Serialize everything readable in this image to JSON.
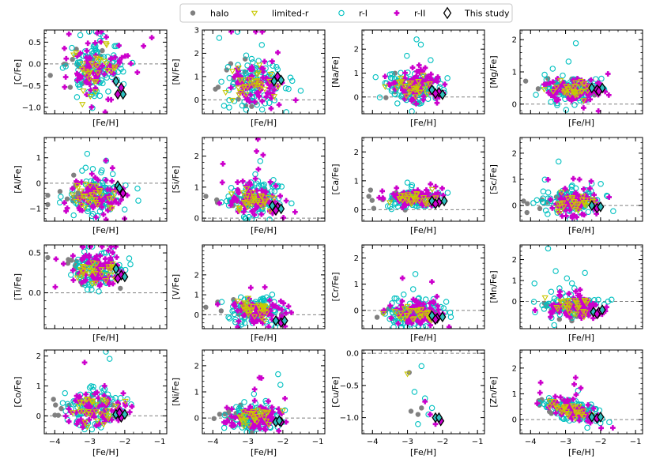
{
  "chart_data": {
    "type": "scatter",
    "title": "",
    "legend": {
      "placement": "top-center",
      "entries": [
        {
          "name": "halo",
          "marker": "circle-filled",
          "color": "#808080"
        },
        {
          "name": "limited-r",
          "marker": "triangle-down-open",
          "color": "#c8c800"
        },
        {
          "name": "r-I",
          "marker": "circle-open",
          "color": "#00c0c0"
        },
        {
          "name": "r-II",
          "marker": "plus-filled",
          "color": "#cc00cc"
        },
        {
          "name": "This study",
          "marker": "diamond-open",
          "color": "#000000"
        }
      ]
    },
    "shared_x": {
      "label": "[Fe/H]",
      "ticks": [
        "−4",
        "−3",
        "−2",
        "−1"
      ],
      "tick_values": [
        -4,
        -3,
        -2,
        -1
      ],
      "xlim": [
        -4.3,
        -0.8
      ]
    },
    "panels": [
      {
        "ylabel": "[C/Fe]",
        "ylim": [
          -1.15,
          0.78
        ],
        "yticks": [
          -1.0,
          -0.5,
          0.0,
          0.5
        ],
        "ytick_labels": [
          "−1.0",
          "−0.5",
          "0.0",
          "0.5"
        ],
        "ref": 0,
        "center": -0.1,
        "spread": 0.35,
        "this_study": [
          [
            -2.25,
            -0.4
          ],
          [
            -2.1,
            -0.55
          ],
          [
            -2.05,
            -0.7
          ],
          [
            -2.2,
            -0.7
          ]
        ]
      },
      {
        "ylabel": "[N/Fe]",
        "ylim": [
          -0.6,
          3.0
        ],
        "yticks": [
          0,
          1,
          2,
          3
        ],
        "ytick_labels": [
          "0",
          "1",
          "2",
          "3"
        ],
        "ref": 0,
        "center": 0.6,
        "spread": 0.55,
        "this_study": [
          [
            -2.25,
            0.8
          ],
          [
            -2.15,
            1.0
          ],
          [
            -2.05,
            0.85
          ]
        ]
      },
      {
        "ylabel": "[Na/Fe]",
        "ylim": [
          -0.7,
          2.8
        ],
        "yticks": [
          0,
          1,
          2
        ],
        "ytick_labels": [
          "0",
          "1",
          "2"
        ],
        "ref": 0,
        "center": 0.4,
        "spread": 0.35,
        "this_study": [
          [
            -2.3,
            0.3
          ],
          [
            -2.1,
            0.2
          ],
          [
            -2.0,
            0.1
          ],
          [
            -2.2,
            0.15
          ]
        ]
      },
      {
        "ylabel": "[Mg/Fe]",
        "ylim": [
          -0.3,
          2.3
        ],
        "yticks": [
          0,
          1,
          2
        ],
        "ytick_labels": [
          "0",
          "1",
          "2"
        ],
        "ref": 0,
        "center": 0.45,
        "spread": 0.2,
        "this_study": [
          [
            -2.25,
            0.5
          ],
          [
            -2.1,
            0.45
          ],
          [
            -1.95,
            0.5
          ],
          [
            -2.05,
            0.4
          ]
        ]
      },
      {
        "ylabel": "[Al/Fe]",
        "ylim": [
          -1.5,
          1.8
        ],
        "yticks": [
          -1,
          0,
          1
        ],
        "ytick_labels": [
          "−1",
          "0",
          "1"
        ],
        "ref": 0,
        "center": -0.55,
        "spread": 0.35,
        "this_study": [
          [
            -2.2,
            -0.1
          ],
          [
            -2.05,
            -0.4
          ],
          [
            -2.15,
            -0.2
          ]
        ]
      },
      {
        "ylabel": "[Si/Fe]",
        "ylim": [
          -0.1,
          2.6
        ],
        "yticks": [
          0,
          1,
          2
        ],
        "ytick_labels": [
          "0",
          "1",
          "2"
        ],
        "ref": 0,
        "center": 0.6,
        "spread": 0.3,
        "this_study": [
          [
            -2.3,
            0.4
          ],
          [
            -2.15,
            0.35
          ],
          [
            -2.05,
            0.3
          ],
          [
            -2.2,
            0.25
          ]
        ]
      },
      {
        "ylabel": "[Ca/Fe]",
        "ylim": [
          -0.4,
          2.5
        ],
        "yticks": [
          0,
          1,
          2
        ],
        "ytick_labels": [
          "0",
          "1",
          "2"
        ],
        "ref": 0,
        "center": 0.38,
        "spread": 0.17,
        "this_study": [
          [
            -2.3,
            0.3
          ],
          [
            -2.1,
            0.25
          ],
          [
            -1.95,
            0.3
          ],
          [
            -2.2,
            0.2
          ]
        ]
      },
      {
        "ylabel": "[Sc/Fe]",
        "ylim": [
          -0.6,
          2.6
        ],
        "yticks": [
          0,
          1,
          2
        ],
        "ytick_labels": [
          "0",
          "1",
          "2"
        ],
        "ref": 0,
        "center": 0.1,
        "spread": 0.25,
        "this_study": [
          [
            -2.25,
            0.0
          ],
          [
            -2.1,
            -0.1
          ],
          [
            -2.0,
            -0.05
          ]
        ]
      },
      {
        "ylabel": "[Ti/Fe]",
        "ylim": [
          -0.45,
          0.6
        ],
        "yticks": [
          0.0,
          0.5
        ],
        "ytick_labels": [
          "0.0",
          "0.5"
        ],
        "ref": 0,
        "center": 0.28,
        "spread": 0.12,
        "this_study": [
          [
            -2.25,
            0.3
          ],
          [
            -2.1,
            0.22
          ],
          [
            -2.0,
            0.2
          ],
          [
            -2.2,
            0.18
          ]
        ]
      },
      {
        "ylabel": "[V/Fe]",
        "ylim": [
          -0.7,
          3.5
        ],
        "yticks": [
          0,
          1,
          2
        ],
        "ytick_labels": [
          "0",
          "1",
          "2"
        ],
        "ref": 0,
        "center": 0.2,
        "spread": 0.35,
        "this_study": [
          [
            -2.2,
            -0.3
          ],
          [
            -2.05,
            -0.4
          ],
          [
            -1.95,
            -0.3
          ]
        ]
      },
      {
        "ylabel": "[Cr/Fe]",
        "ylim": [
          -0.7,
          2.5
        ],
        "yticks": [
          0,
          1,
          2
        ],
        "ytick_labels": [
          "0",
          "1",
          "2"
        ],
        "ref": 0,
        "center": -0.15,
        "spread": 0.25,
        "this_study": [
          [
            -2.3,
            -0.2
          ],
          [
            -2.15,
            -0.3
          ],
          [
            -2.0,
            -0.25
          ],
          [
            -2.2,
            -0.35
          ]
        ]
      },
      {
        "ylabel": "[Mn/Fe]",
        "ylim": [
          -1.3,
          2.7
        ],
        "yticks": [
          0,
          1,
          2
        ],
        "ytick_labels": [
          "0",
          "1",
          "2"
        ],
        "ref": 0,
        "center": -0.3,
        "spread": 0.3,
        "this_study": [
          [
            -2.2,
            -0.5
          ],
          [
            -2.05,
            -0.5
          ],
          [
            -1.95,
            -0.4
          ],
          [
            -2.1,
            -0.6
          ]
        ]
      },
      {
        "ylabel": "[Co/Fe]",
        "ylim": [
          -0.6,
          2.2
        ],
        "yticks": [
          0,
          1,
          2
        ],
        "ytick_labels": [
          "0",
          "1",
          "2"
        ],
        "ref": 0,
        "center": 0.2,
        "spread": 0.3,
        "this_study": [
          [
            -2.25,
            0.05
          ],
          [
            -2.1,
            -0.05
          ],
          [
            -2.0,
            0.05
          ],
          [
            -2.15,
            0.1
          ]
        ]
      },
      {
        "ylabel": "[Ni/Fe]",
        "ylim": [
          -0.6,
          2.6
        ],
        "yticks": [
          0,
          1,
          2
        ],
        "ytick_labels": [
          "0",
          "1",
          "2"
        ],
        "ref": 0,
        "center": 0.05,
        "spread": 0.25,
        "this_study": [
          [
            -2.2,
            -0.15
          ],
          [
            -2.05,
            -0.15
          ],
          [
            -2.1,
            -0.1
          ]
        ]
      },
      {
        "ylabel": "[Cu/Fe]",
        "ylim": [
          -1.25,
          0.05
        ],
        "yticks": [
          -1.0,
          -0.5,
          0.0
        ],
        "ytick_labels": [
          "−1.0",
          "−0.5",
          "0.0"
        ],
        "ref": 0,
        "center": -0.9,
        "spread": 0.15,
        "sparse": true,
        "this_study": [
          [
            -2.2,
            -1.0
          ],
          [
            -2.05,
            -1.05
          ],
          [
            -2.1,
            -1.0
          ]
        ]
      },
      {
        "ylabel": "[Zn/Fe]",
        "ylim": [
          -0.55,
          2.7
        ],
        "yticks": [
          0,
          1,
          2
        ],
        "ytick_labels": [
          "0",
          "1",
          "2"
        ],
        "ref": 0,
        "center": 0.35,
        "spread": 0.2,
        "trend": true,
        "this_study": [
          [
            -2.25,
            0.1
          ],
          [
            -2.1,
            0.05
          ],
          [
            -2.0,
            0.1
          ]
        ]
      }
    ],
    "series": [
      {
        "name": "halo",
        "n_points": 18
      },
      {
        "name": "limited-r",
        "n_points": 30
      },
      {
        "name": "r-I",
        "n_points": 110
      },
      {
        "name": "r-II",
        "n_points": 80
      },
      {
        "name": "This study",
        "n_points": 4
      }
    ]
  }
}
